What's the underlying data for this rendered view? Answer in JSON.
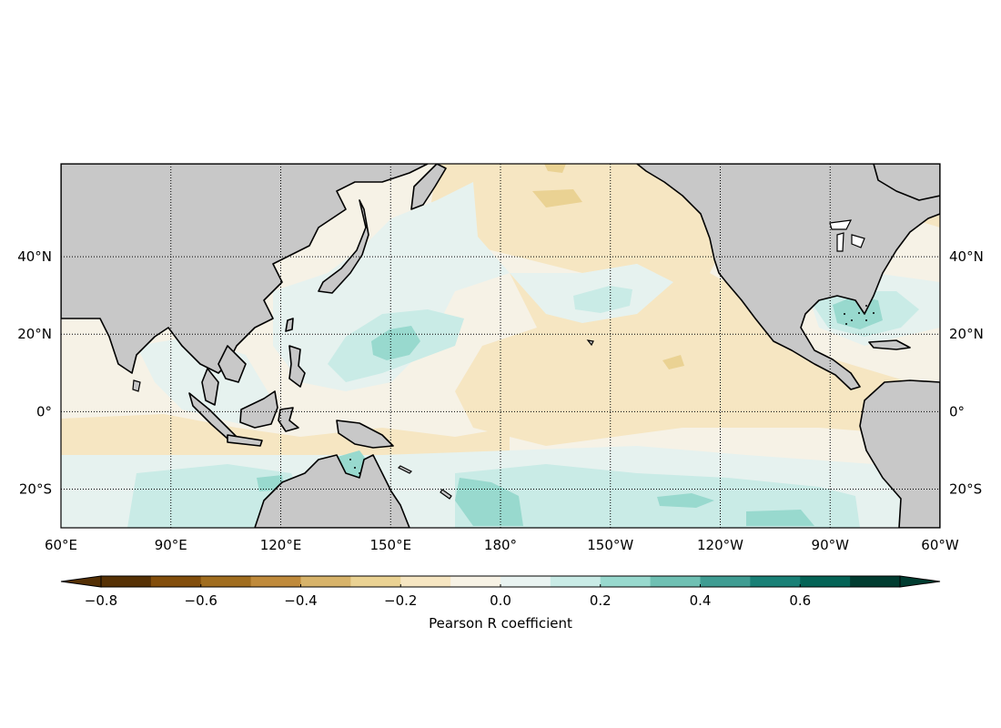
{
  "map": {
    "lat_ticks": [
      {
        "lat": 40,
        "label": "40°N"
      },
      {
        "lat": 20,
        "label": "20°N"
      },
      {
        "lat": 0,
        "label": "0°"
      },
      {
        "lat": -20,
        "label": "20°S"
      }
    ],
    "lon_ticks": [
      {
        "lon": 60,
        "label": "60°E"
      },
      {
        "lon": 90,
        "label": "90°E"
      },
      {
        "lon": 120,
        "label": "120°E"
      },
      {
        "lon": 150,
        "label": "150°E"
      },
      {
        "lon": 180,
        "label": "180°"
      },
      {
        "lon": 210,
        "label": "150°W"
      },
      {
        "lon": 240,
        "label": "120°W"
      },
      {
        "lon": 270,
        "label": "90°W"
      },
      {
        "lon": 300,
        "label": "60°W"
      }
    ],
    "extent": {
      "lon_min": 60,
      "lon_max": 300,
      "lat_min": -30,
      "lat_max": 64
    },
    "colors": {
      "land": "#c8c8c8",
      "coast": "#000000",
      "ocean_base": "#f6f2e6"
    }
  },
  "colorbar": {
    "label": "Pearson R coefficient",
    "ticks": [
      {
        "value": -0.8,
        "label": "−0.8"
      },
      {
        "value": -0.6,
        "label": "−0.6"
      },
      {
        "value": -0.4,
        "label": "−0.4"
      },
      {
        "value": -0.2,
        "label": "−0.2"
      },
      {
        "value": 0.0,
        "label": "0.0"
      },
      {
        "value": 0.2,
        "label": "0.2"
      },
      {
        "value": 0.4,
        "label": "0.4"
      },
      {
        "value": 0.6,
        "label": "0.6"
      }
    ],
    "levels": [
      -0.8,
      -0.7,
      -0.6,
      -0.5,
      -0.4,
      -0.3,
      -0.2,
      -0.1,
      0.0,
      0.1,
      0.2,
      0.3,
      0.4,
      0.5,
      0.6,
      0.7,
      0.8
    ],
    "colors": [
      "#563105",
      "#824e0c",
      "#a06d1f",
      "#bf8a3b",
      "#d7b36a",
      "#ead293",
      "#f6e6c2",
      "#f7f2e5",
      "#e9f3f1",
      "#c9ebe6",
      "#98d9ce",
      "#6fc0b3",
      "#3f9c92",
      "#198076",
      "#046356",
      "#003c30"
    ],
    "under_color": "#543005",
    "over_color": "#003c30"
  }
}
